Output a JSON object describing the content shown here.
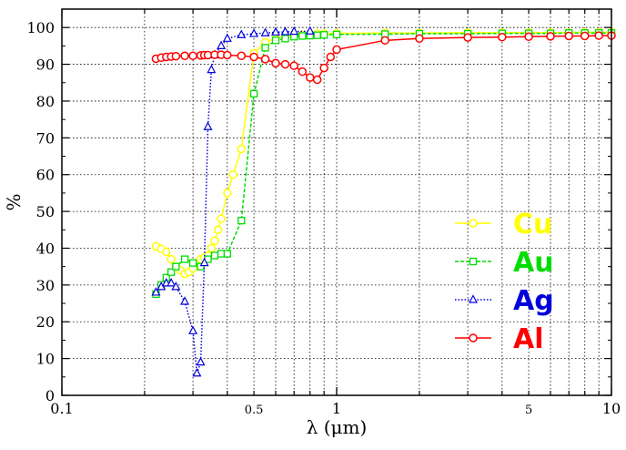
{
  "chart_data": {
    "type": "line",
    "xlabel": "λ  (μm)",
    "ylabel": "%",
    "xscale": "log",
    "xlim": [
      0.1,
      10
    ],
    "ylim": [
      0,
      105
    ],
    "grid": true,
    "legend_position": "right-center",
    "x_tick_labels": [
      {
        "value": 0.1,
        "label": "0.1"
      },
      {
        "value": 0.5,
        "label": "0.5"
      },
      {
        "value": 1,
        "label": "1"
      },
      {
        "value": 5,
        "label": "5"
      },
      {
        "value": 10,
        "label": "10"
      }
    ],
    "y_ticks": [
      0,
      10,
      20,
      30,
      40,
      50,
      60,
      70,
      80,
      90,
      100
    ],
    "series": [
      {
        "name": "Cu",
        "color": "#ffff00",
        "marker": "circle",
        "line": "solid",
        "x": [
          0.22,
          0.23,
          0.24,
          0.25,
          0.26,
          0.27,
          0.28,
          0.29,
          0.3,
          0.31,
          0.32,
          0.33,
          0.34,
          0.35,
          0.36,
          0.37,
          0.38,
          0.4,
          0.42,
          0.45,
          0.5,
          0.55,
          0.6,
          0.65,
          0.7,
          0.75,
          0.8,
          0.85,
          0.9,
          1.0,
          1.5,
          2,
          3,
          4,
          5,
          6,
          7,
          8,
          9,
          10
        ],
        "y": [
          40.5,
          39.8,
          39,
          37,
          35,
          34,
          33,
          33.5,
          34.5,
          36,
          37,
          37.5,
          38,
          40,
          42,
          45,
          48,
          55,
          60,
          67,
          93,
          96,
          97,
          97.5,
          98,
          98,
          98.2,
          98.3,
          98.3,
          98.4,
          98.5,
          98.5,
          98.6,
          98.6,
          98.6,
          98.6,
          98.6,
          98.7,
          98.7,
          98.7
        ]
      },
      {
        "name": "Au",
        "color": "#00dd00",
        "marker": "square",
        "line": "dashed",
        "x": [
          0.22,
          0.23,
          0.24,
          0.25,
          0.26,
          0.28,
          0.3,
          0.32,
          0.34,
          0.36,
          0.38,
          0.4,
          0.45,
          0.5,
          0.55,
          0.6,
          0.65,
          0.7,
          0.75,
          0.8,
          0.85,
          0.9,
          1.0,
          1.5,
          2,
          3,
          4,
          5,
          6,
          7,
          8,
          9,
          10
        ],
        "y": [
          27.5,
          30,
          32,
          33.5,
          35,
          37,
          36,
          35,
          37,
          38,
          38.5,
          38.5,
          47.5,
          82,
          94.5,
          96.5,
          97,
          97.5,
          97.7,
          97.8,
          97.9,
          98,
          98.1,
          98.2,
          98.3,
          98.3,
          98.4,
          98.4,
          98.4,
          98.5,
          98.5,
          98.5,
          98.5
        ]
      },
      {
        "name": "Ag",
        "color": "#0000dd",
        "marker": "triangle",
        "line": "dotted",
        "x": [
          0.22,
          0.23,
          0.24,
          0.25,
          0.26,
          0.28,
          0.3,
          0.31,
          0.32,
          0.33,
          0.34,
          0.35,
          0.36,
          0.38,
          0.4,
          0.45,
          0.5,
          0.55,
          0.6,
          0.65,
          0.7,
          0.8
        ],
        "y": [
          28,
          29.5,
          30.5,
          30.5,
          29.5,
          25.5,
          17.5,
          6,
          9,
          36,
          73,
          88.5,
          92.5,
          95,
          97,
          98,
          98.3,
          98.5,
          98.7,
          98.8,
          98.9,
          99
        ]
      },
      {
        "name": "Al",
        "color": "#ff0000",
        "marker": "circle",
        "line": "solid",
        "x": [
          0.22,
          0.23,
          0.24,
          0.25,
          0.26,
          0.28,
          0.3,
          0.32,
          0.33,
          0.34,
          0.36,
          0.38,
          0.4,
          0.45,
          0.5,
          0.55,
          0.6,
          0.65,
          0.7,
          0.75,
          0.8,
          0.85,
          0.9,
          0.95,
          1.0,
          1.5,
          2,
          3,
          4,
          5,
          6,
          7,
          8,
          9,
          10
        ],
        "y": [
          91.5,
          91.8,
          92,
          92.1,
          92.2,
          92.3,
          92.3,
          92.4,
          92.5,
          92.5,
          92.6,
          92.6,
          92.5,
          92.3,
          92,
          91.4,
          90.3,
          90,
          89.6,
          88,
          86.4,
          85.8,
          89,
          92,
          94,
          96.5,
          97,
          97.3,
          97.4,
          97.5,
          97.6,
          97.7,
          97.7,
          97.8,
          97.8
        ]
      }
    ]
  }
}
